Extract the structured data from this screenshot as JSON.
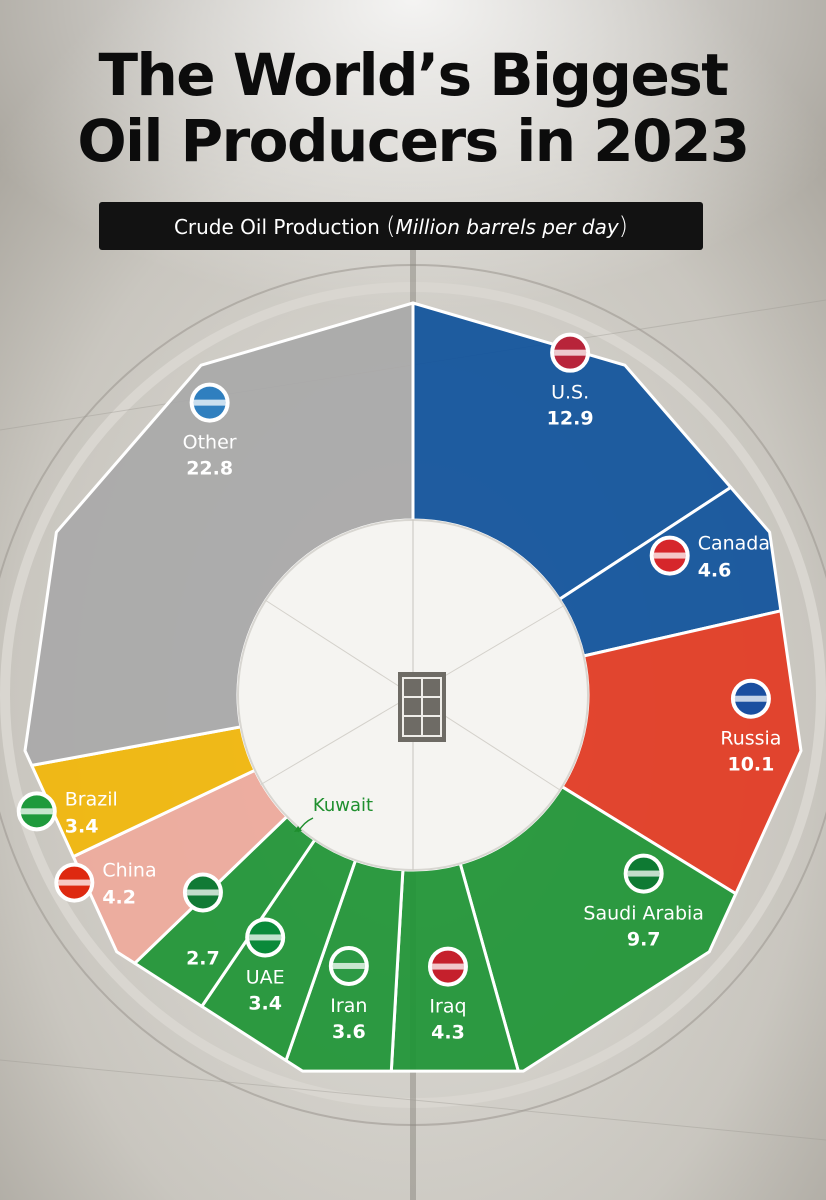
{
  "header": {
    "title_line1": "The World’s Biggest",
    "title_line2": "Oil Producers in 2023",
    "subtitle_main": "Crude Oil Production",
    "subtitle_unit": "Million barrels per day"
  },
  "chart_data": {
    "type": "pie",
    "title": "The World’s Biggest Oil Producers in 2023",
    "subtitle": "Crude Oil Production (Million barrels per day)",
    "categories": [
      "U.S.",
      "Canada",
      "Russia",
      "Saudi Arabia",
      "Iraq",
      "Iran",
      "UAE",
      "Kuwait",
      "China",
      "Brazil",
      "Other"
    ],
    "values": [
      12.9,
      4.6,
      10.1,
      9.7,
      4.3,
      3.6,
      3.4,
      2.7,
      4.2,
      3.4,
      22.8
    ],
    "slices": [
      {
        "name": "U.S.",
        "value": 12.9,
        "color": "#10539c",
        "icon": "us-flag-icon"
      },
      {
        "name": "Canada",
        "value": 4.6,
        "color": "#10539c",
        "icon": "canada-flag-icon"
      },
      {
        "name": "Russia",
        "value": 10.1,
        "color": "#e23a22",
        "icon": "russia-flag-icon"
      },
      {
        "name": "Saudi Arabia",
        "value": 9.7,
        "color": "#1f9436",
        "icon": "saudi-arabia-flag-icon"
      },
      {
        "name": "Iraq",
        "value": 4.3,
        "color": "#1f9436",
        "icon": "iraq-flag-icon"
      },
      {
        "name": "Iran",
        "value": 3.6,
        "color": "#1f9436",
        "icon": "iran-flag-icon"
      },
      {
        "name": "UAE",
        "value": 3.4,
        "color": "#1f9436",
        "icon": "uae-flag-icon"
      },
      {
        "name": "Kuwait",
        "value": 2.7,
        "color": "#1f9436",
        "icon": "kuwait-flag-icon"
      },
      {
        "name": "China",
        "value": 4.2,
        "color": "#eeaa9c",
        "icon": "china-flag-icon"
      },
      {
        "name": "Brazil",
        "value": 3.4,
        "color": "#f1b70a",
        "icon": "brazil-flag-icon"
      },
      {
        "name": "Other",
        "value": 22.8,
        "color": "#a9a9a9",
        "icon": "globe-icon"
      }
    ],
    "chart_style": "donut, 11-sided polygon outline"
  }
}
